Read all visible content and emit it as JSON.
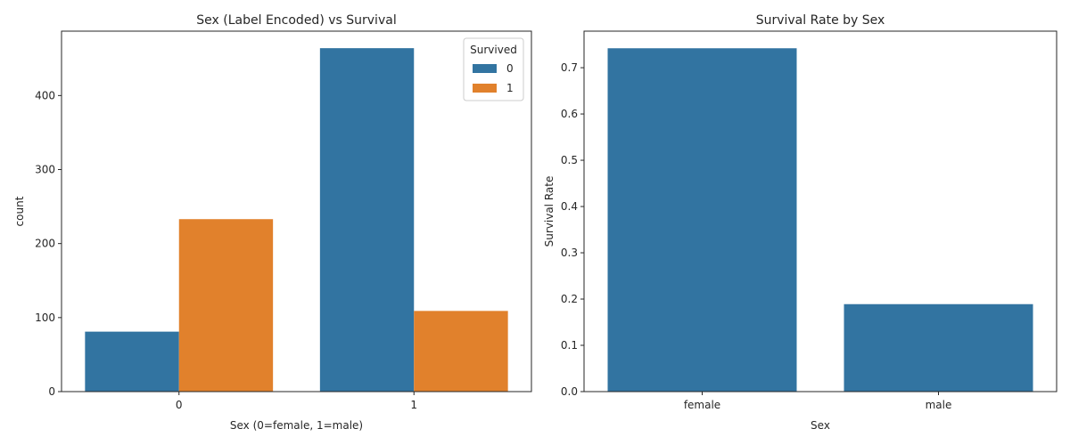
{
  "chart_data": [
    {
      "type": "bar",
      "title": "Sex (Label Encoded) vs Survival",
      "xlabel": "Sex (0=female, 1=male)",
      "ylabel": "count",
      "categories": [
        "0",
        "1"
      ],
      "series": [
        {
          "name": "0",
          "color": "#3274a1",
          "values": [
            81,
            464
          ]
        },
        {
          "name": "1",
          "color": "#e1812c",
          "values": [
            233,
            109
          ]
        }
      ],
      "ylim": [
        0,
        487
      ],
      "yticks": [
        0,
        100,
        200,
        300,
        400
      ],
      "legend": {
        "title": "Survived",
        "placement": "top-right"
      },
      "grid": false
    },
    {
      "type": "bar",
      "title": "Survival Rate by Sex",
      "xlabel": "Sex",
      "ylabel": "Survival Rate",
      "categories": [
        "female",
        "male"
      ],
      "series": [
        {
          "color": "#3274a1",
          "values": [
            0.742,
            0.189
          ]
        }
      ],
      "ylim": [
        0,
        0.779
      ],
      "yticks": [
        0.0,
        0.1,
        0.2,
        0.3,
        0.4,
        0.5,
        0.6,
        0.7
      ],
      "grid": false
    }
  ]
}
